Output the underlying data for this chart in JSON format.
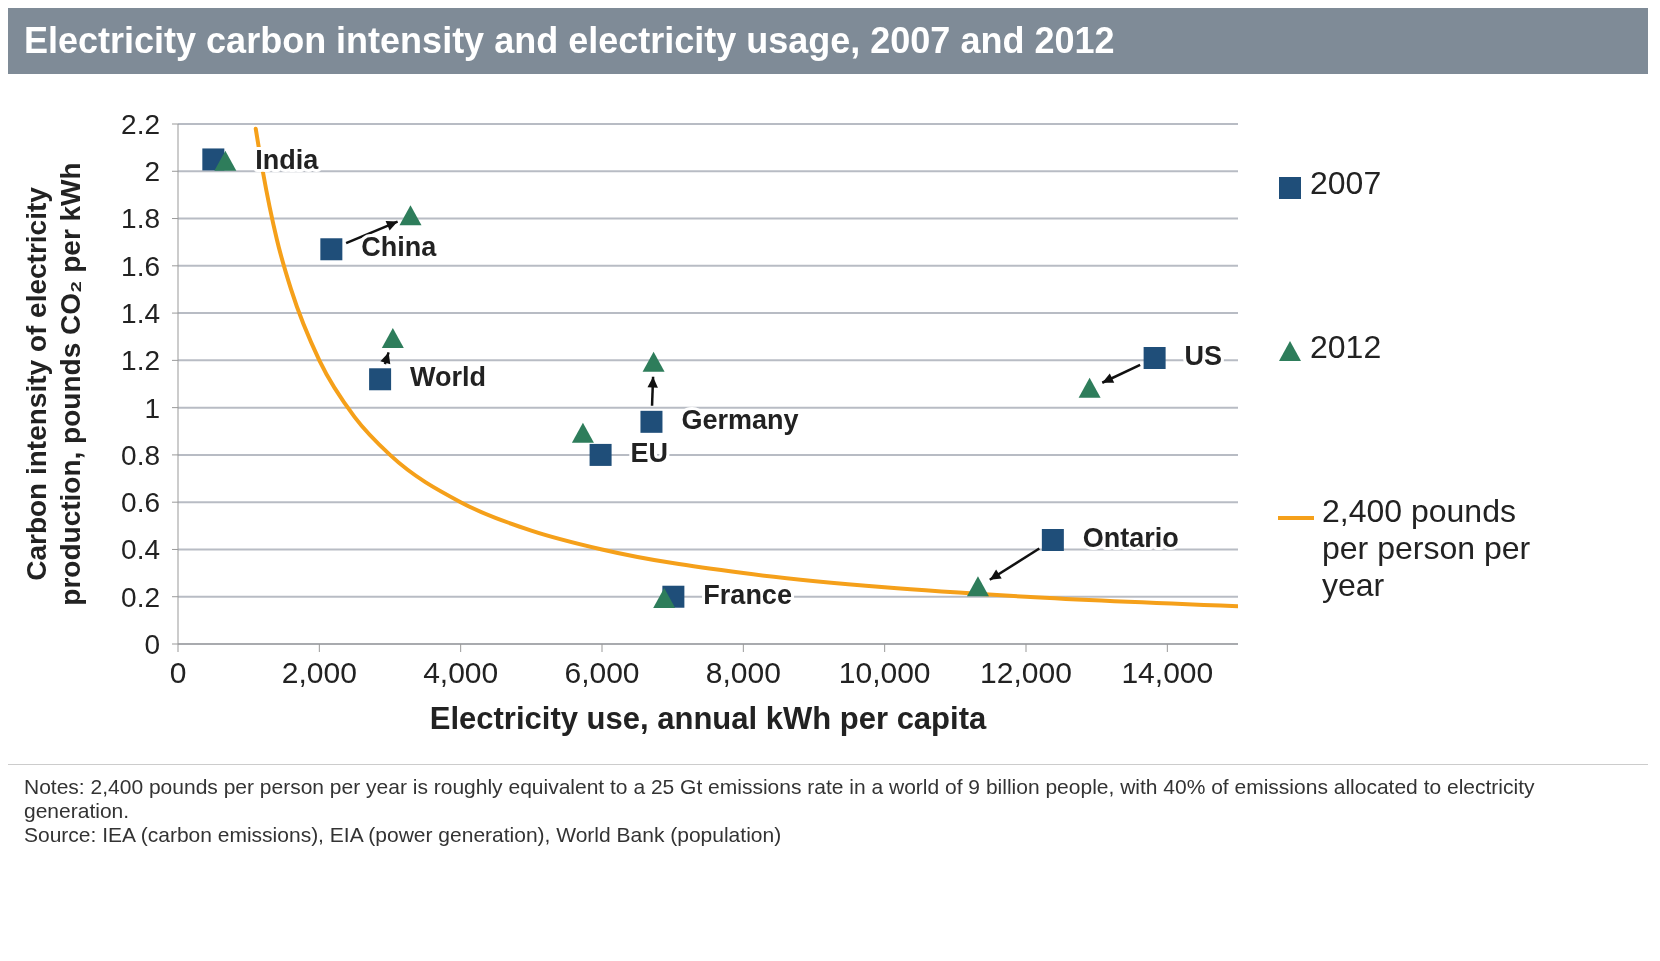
{
  "chart_data": {
    "type": "scatter",
    "title": "Electricity carbon intensity and electricity usage, 2007 and 2012",
    "xlabel": "Electricity use, annual kWh per capita",
    "ylabel": "Carbon intensity of electricity production, pounds CO₂ per kWh",
    "xlim": [
      0,
      15000
    ],
    "xticks": [
      0,
      {
        "value": 2000,
        "label": "2,000"
      },
      {
        "value": 4000,
        "label": "4,000"
      },
      {
        "value": 6000,
        "label": "6,000"
      },
      {
        "value": 8000,
        "label": "8,000"
      },
      {
        "value": 10000,
        "label": "10,000"
      },
      {
        "value": 12000,
        "label": "12,000"
      },
      {
        "value": 14000,
        "label": "14,000"
      }
    ],
    "ylim": [
      0,
      2.2
    ],
    "yticks": [
      0,
      0.2,
      0.4,
      0.6,
      0.8,
      1,
      1.2,
      1.4,
      1.6,
      1.8,
      2,
      2.2
    ],
    "grid": "y",
    "legend": "right",
    "series": [
      {
        "name": "2007",
        "marker": "square",
        "color": "#1f4e79",
        "x": [
          500,
          2170,
          2860,
          6700,
          5980,
          7010,
          12380,
          13820
        ],
        "values": [
          2.05,
          1.67,
          1.12,
          0.94,
          0.8,
          0.2,
          0.44,
          1.21
        ]
      },
      {
        "name": "2012",
        "marker": "triangle",
        "color": "#2e7d5b",
        "x": [
          670,
          3290,
          3040,
          6730,
          5730,
          6880,
          11320,
          12900
        ],
        "values": [
          2.04,
          1.81,
          1.29,
          1.19,
          0.89,
          0.19,
          0.24,
          1.08
        ]
      },
      {
        "name": "2,400 pounds per person per year",
        "type": "line",
        "marker": "none",
        "color": "#f5a01a",
        "x": [
          1100,
          1200,
          1400,
          1600,
          2000,
          2500,
          3000,
          4000,
          5000,
          6000,
          8000,
          10000,
          12000,
          15000
        ],
        "values": [
          2.18,
          2.0,
          1.71,
          1.5,
          1.2,
          0.96,
          0.8,
          0.6,
          0.48,
          0.4,
          0.3,
          0.24,
          0.2,
          0.16
        ]
      }
    ],
    "annotations": [
      {
        "text": "India",
        "x": 670,
        "y": 2.04
      },
      {
        "text": "China",
        "x": 2170,
        "y": 1.67
      },
      {
        "text": "World",
        "x": 2860,
        "y": 1.12
      },
      {
        "text": "Germany",
        "x": 6700,
        "y": 0.94
      },
      {
        "text": "EU",
        "x": 5980,
        "y": 0.8
      },
      {
        "text": "France",
        "x": 7010,
        "y": 0.2
      },
      {
        "text": "Ontario",
        "x": 12380,
        "y": 0.44
      },
      {
        "text": "US",
        "x": 13820,
        "y": 1.21
      },
      "Notes: 2,400 pounds per person per year is roughly equivalent to a 25 Gt emissions rate in a world of 9 billion people, with 40% of emissions allocated to electricity generation.",
      "Source: IEA (carbon emissions), EIA (power generation), World Bank (population)"
    ]
  }
}
